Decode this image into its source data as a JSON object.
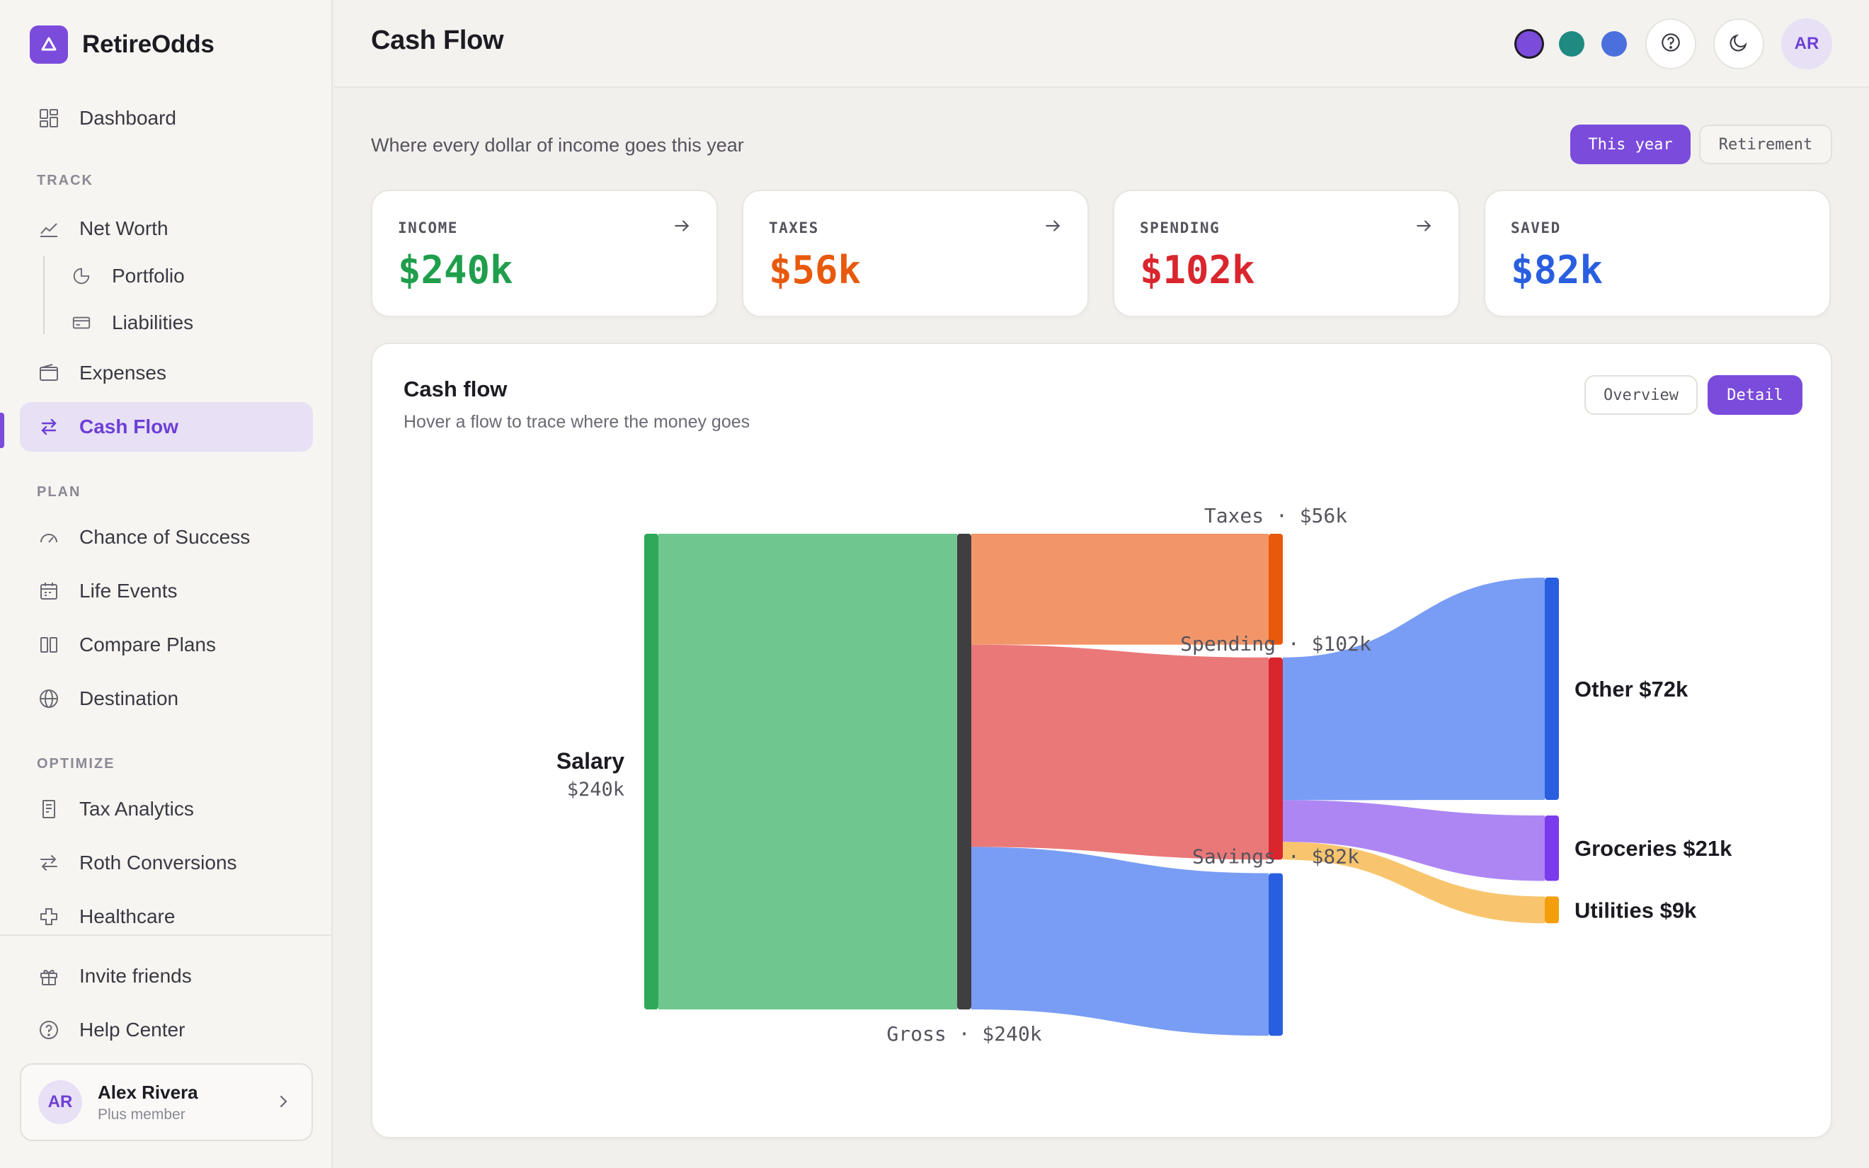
{
  "app": {
    "name": "RetireOdds"
  },
  "sidebar": {
    "dashboard": "Dashboard",
    "sections": {
      "track": "TRACK",
      "plan": "PLAN",
      "optimize": "OPTIMIZE"
    },
    "track_items": {
      "net_worth": "Net Worth",
      "portfolio": "Portfolio",
      "liabilities": "Liabilities",
      "expenses": "Expenses",
      "cash_flow": "Cash Flow"
    },
    "plan_items": {
      "chance": "Chance of Success",
      "life_events": "Life Events",
      "compare": "Compare Plans",
      "destination": "Destination"
    },
    "optimize_items": {
      "tax": "Tax Analytics",
      "roth": "Roth Conversions",
      "healthcare": "Healthcare"
    },
    "bottom": {
      "invite": "Invite friends",
      "help": "Help Center"
    },
    "user": {
      "initials": "AR",
      "name": "Alex Rivera",
      "plan": "Plus member"
    }
  },
  "header": {
    "title": "Cash Flow",
    "theme_dots": [
      "#7b4bdc",
      "#1f8a80",
      "#4b6fdc"
    ],
    "avatar": "AR"
  },
  "main": {
    "subtitle": "Where every dollar of income goes this year",
    "range_toggle": {
      "this_year": "This year",
      "retirement": "Retirement"
    }
  },
  "stats": [
    {
      "label": "INCOME",
      "value": "$240k",
      "color": "#1f9e4c",
      "arrow": true
    },
    {
      "label": "TAXES",
      "value": "$56k",
      "color": "#e8590c",
      "arrow": true
    },
    {
      "label": "SPENDING",
      "value": "$102k",
      "color": "#d9262e",
      "arrow": true
    },
    {
      "label": "SAVED",
      "value": "$82k",
      "color": "#2a5ee0",
      "arrow": false
    }
  ],
  "cashflow": {
    "title": "Cash flow",
    "subtitle": "Hover a flow to trace where the money goes",
    "view_toggle": {
      "overview": "Overview",
      "detail": "Detail"
    }
  },
  "chart_data": {
    "type": "sankey",
    "units": "$k",
    "nodes": [
      {
        "id": "salary",
        "name": "Salary",
        "value": 240,
        "label": "Salary",
        "sublabel": "$240k",
        "color": "#2fa85a"
      },
      {
        "id": "gross",
        "name": "Gross",
        "value": 240,
        "label": "Gross · $240k",
        "color": "#3f3f42"
      },
      {
        "id": "taxes",
        "name": "Taxes",
        "value": 56,
        "label": "Taxes · $56k",
        "color": "#e8590c"
      },
      {
        "id": "spending",
        "name": "Spending",
        "value": 102,
        "label": "Spending · $102k",
        "color": "#d9262e"
      },
      {
        "id": "savings",
        "name": "Savings",
        "value": 82,
        "label": "Savings · $82k",
        "color": "#2a5ee0"
      },
      {
        "id": "other",
        "name": "Other",
        "value": 72,
        "label": "Other $72k",
        "color": "#2a5ee0"
      },
      {
        "id": "groceries",
        "name": "Groceries",
        "value": 21,
        "label": "Groceries $21k",
        "color": "#7c3aed"
      },
      {
        "id": "utilities",
        "name": "Utilities",
        "value": 9,
        "label": "Utilities $9k",
        "color": "#f59e0b"
      }
    ],
    "links": [
      {
        "source": "salary",
        "target": "gross",
        "value": 240,
        "color": "#6fc78f"
      },
      {
        "source": "gross",
        "target": "taxes",
        "value": 56,
        "color": "#f2966a"
      },
      {
        "source": "gross",
        "target": "spending",
        "value": 102,
        "color": "#ea7878"
      },
      {
        "source": "gross",
        "target": "savings",
        "value": 82,
        "color": "#799df4"
      },
      {
        "source": "spending",
        "target": "other",
        "value": 72,
        "color": "#799df4"
      },
      {
        "source": "spending",
        "target": "groceries",
        "value": 21,
        "color": "#ad86f4"
      },
      {
        "source": "spending",
        "target": "utilities",
        "value": 9,
        "color": "#f8c56e"
      }
    ]
  }
}
